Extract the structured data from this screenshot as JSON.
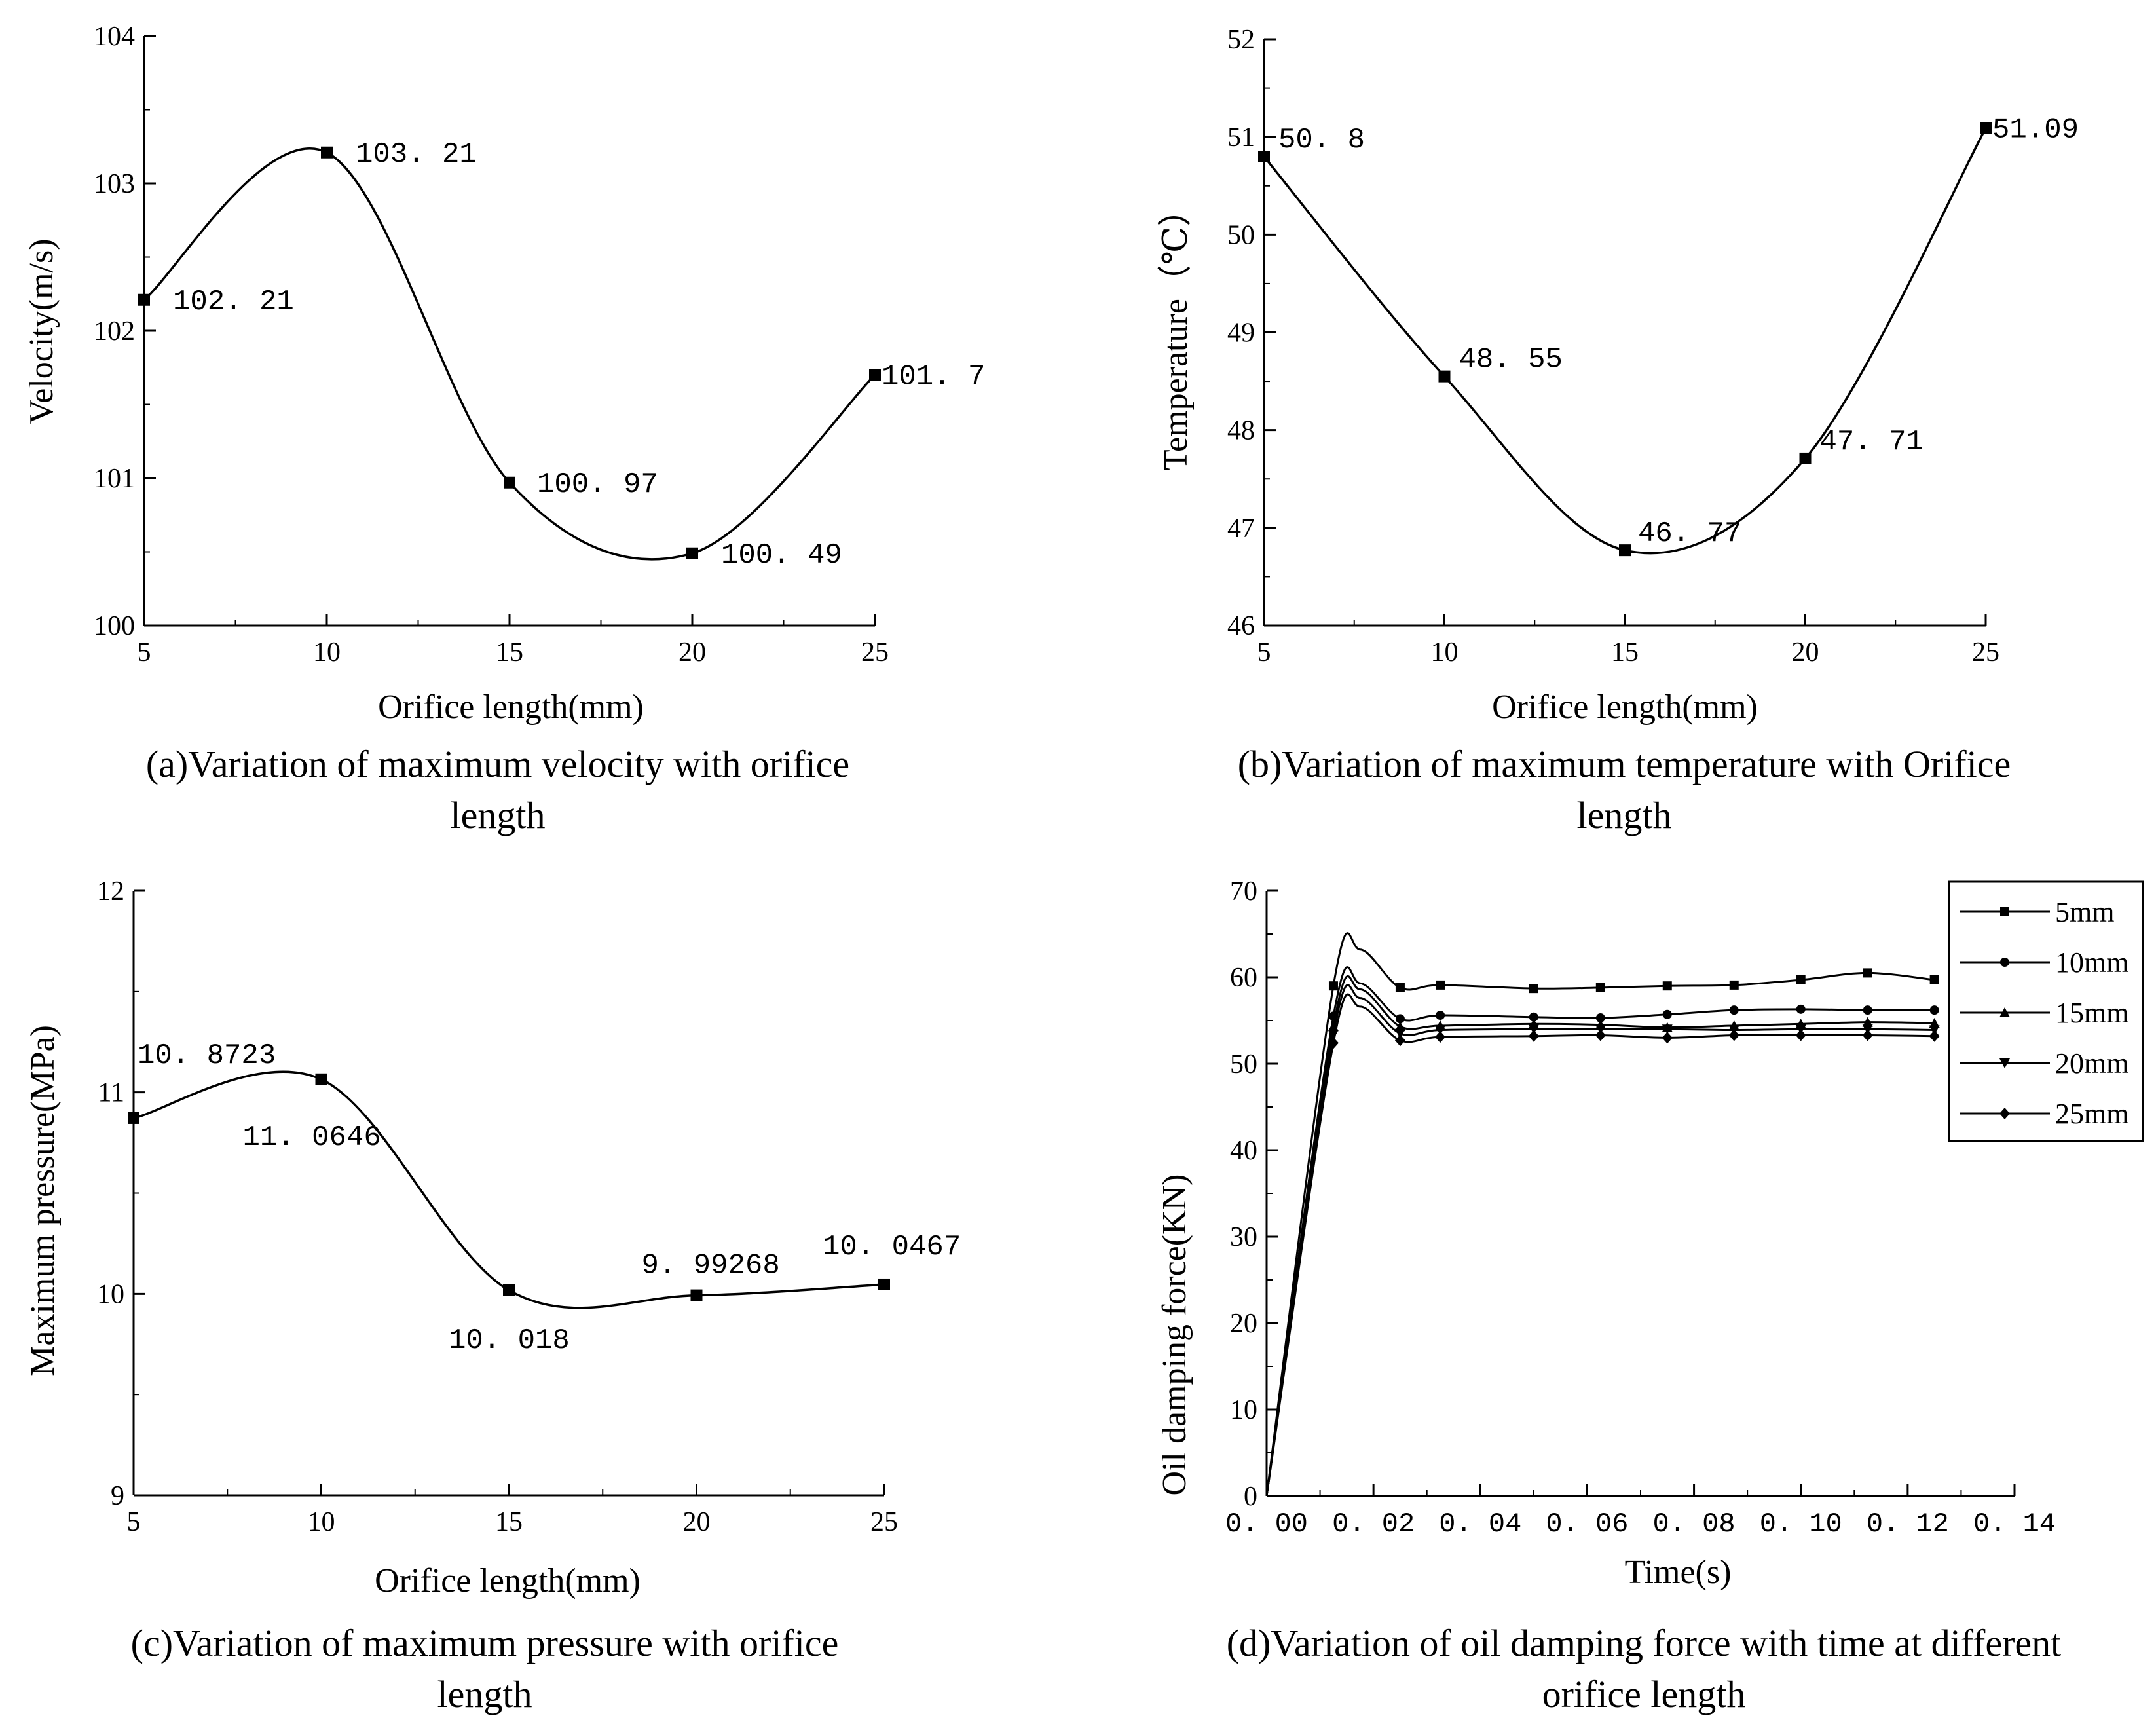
{
  "chart_data": [
    {
      "id": "a",
      "type": "line",
      "x": [
        5,
        10,
        15,
        20,
        25
      ],
      "values": [
        102.21,
        103.21,
        100.97,
        100.49,
        101.7
      ],
      "point_labels": [
        "102. 21",
        "103. 21",
        "100. 97",
        "100. 49",
        "101. 7"
      ],
      "xlabel": "Orifice length(mm)",
      "ylabel": "Velocity(m/s)",
      "xlim": [
        5,
        25
      ],
      "ylim": [
        100,
        104
      ],
      "xticks": [
        5,
        10,
        15,
        20,
        25
      ],
      "yticks": [
        100,
        101,
        102,
        103,
        104
      ],
      "caption_line1": "(a)Variation of maximum velocity with orifice",
      "caption_line2": "length"
    },
    {
      "id": "b",
      "type": "line",
      "x": [
        5,
        10,
        15,
        20,
        25
      ],
      "values": [
        50.8,
        48.55,
        46.77,
        47.71,
        51.09
      ],
      "point_labels": [
        "50. 8",
        "48. 55",
        "46. 77",
        "47. 71",
        "51.09"
      ],
      "xlabel": "Orifice length(mm)",
      "ylabel": "Temperature（℃）",
      "xlim": [
        5,
        25
      ],
      "ylim": [
        46,
        52
      ],
      "xticks": [
        5,
        10,
        15,
        20,
        25
      ],
      "yticks": [
        46,
        47,
        48,
        49,
        50,
        51,
        52
      ],
      "caption_line1": "(b)Variation of maximum temperature with Orifice",
      "caption_line2": "length"
    },
    {
      "id": "c",
      "type": "line",
      "x": [
        5,
        10,
        15,
        20,
        25
      ],
      "values": [
        10.8723,
        11.0646,
        10.018,
        9.99268,
        10.0467
      ],
      "point_labels": [
        "10. 8723",
        "11. 0646",
        "10. 018",
        "9. 99268",
        "10. 0467"
      ],
      "xlabel": "Orifice length(mm)",
      "ylabel": "Maximum pressure(MPa)",
      "xlim": [
        5,
        25
      ],
      "ylim": [
        9,
        12
      ],
      "xticks": [
        5,
        10,
        15,
        20,
        25
      ],
      "yticks": [
        9,
        10,
        11,
        12
      ],
      "caption_line1": "(c)Variation of maximum pressure with orifice",
      "caption_line2": "length"
    },
    {
      "id": "d",
      "type": "line",
      "xlabel": "Time(s)",
      "ylabel": "Oil damping force(KN)",
      "xlim": [
        0,
        0.14
      ],
      "ylim": [
        0,
        70
      ],
      "xticks": [
        0,
        0.02,
        0.04,
        0.06,
        0.08,
        0.1,
        0.12,
        0.14
      ],
      "xtick_labels": [
        "0. 00",
        "0. 02",
        "0. 04",
        "0. 06",
        "0. 08",
        "0. 10",
        "0. 12",
        "0. 14"
      ],
      "yticks": [
        0,
        10,
        20,
        30,
        40,
        50,
        60,
        70
      ],
      "legend_position": "top-right",
      "x": [
        0,
        0.0125,
        0.025,
        0.0325,
        0.05,
        0.0625,
        0.075,
        0.0875,
        0.1,
        0.1125,
        0.125
      ],
      "series": [
        {
          "name": "5mm",
          "marker": "square",
          "values": [
            0,
            59,
            58.8,
            59.1,
            58.7,
            58.8,
            59,
            59.1,
            59.7,
            60.5,
            59.7
          ]
        },
        {
          "name": "10mm",
          "marker": "circle",
          "values": [
            0,
            55.5,
            55.2,
            55.6,
            55.4,
            55.3,
            55.7,
            56.2,
            56.3,
            56.2,
            56.2
          ]
        },
        {
          "name": "15mm",
          "marker": "triangle-up",
          "values": [
            0,
            54.3,
            54.3,
            54.4,
            54.6,
            54.5,
            54.2,
            54.4,
            54.6,
            54.8,
            54.7
          ]
        },
        {
          "name": "20mm",
          "marker": "triangle-down",
          "values": [
            0,
            53.4,
            53.5,
            53.9,
            54,
            54,
            54,
            53.9,
            54,
            54,
            53.9
          ]
        },
        {
          "name": "25mm",
          "marker": "diamond",
          "values": [
            0,
            52.4,
            52.7,
            53.1,
            53.2,
            53.3,
            53,
            53.3,
            53.3,
            53.3,
            53.2
          ]
        }
      ],
      "caption_line1": "(d)Variation of oil damping force with time at different",
      "caption_line2": "orifice length"
    }
  ]
}
